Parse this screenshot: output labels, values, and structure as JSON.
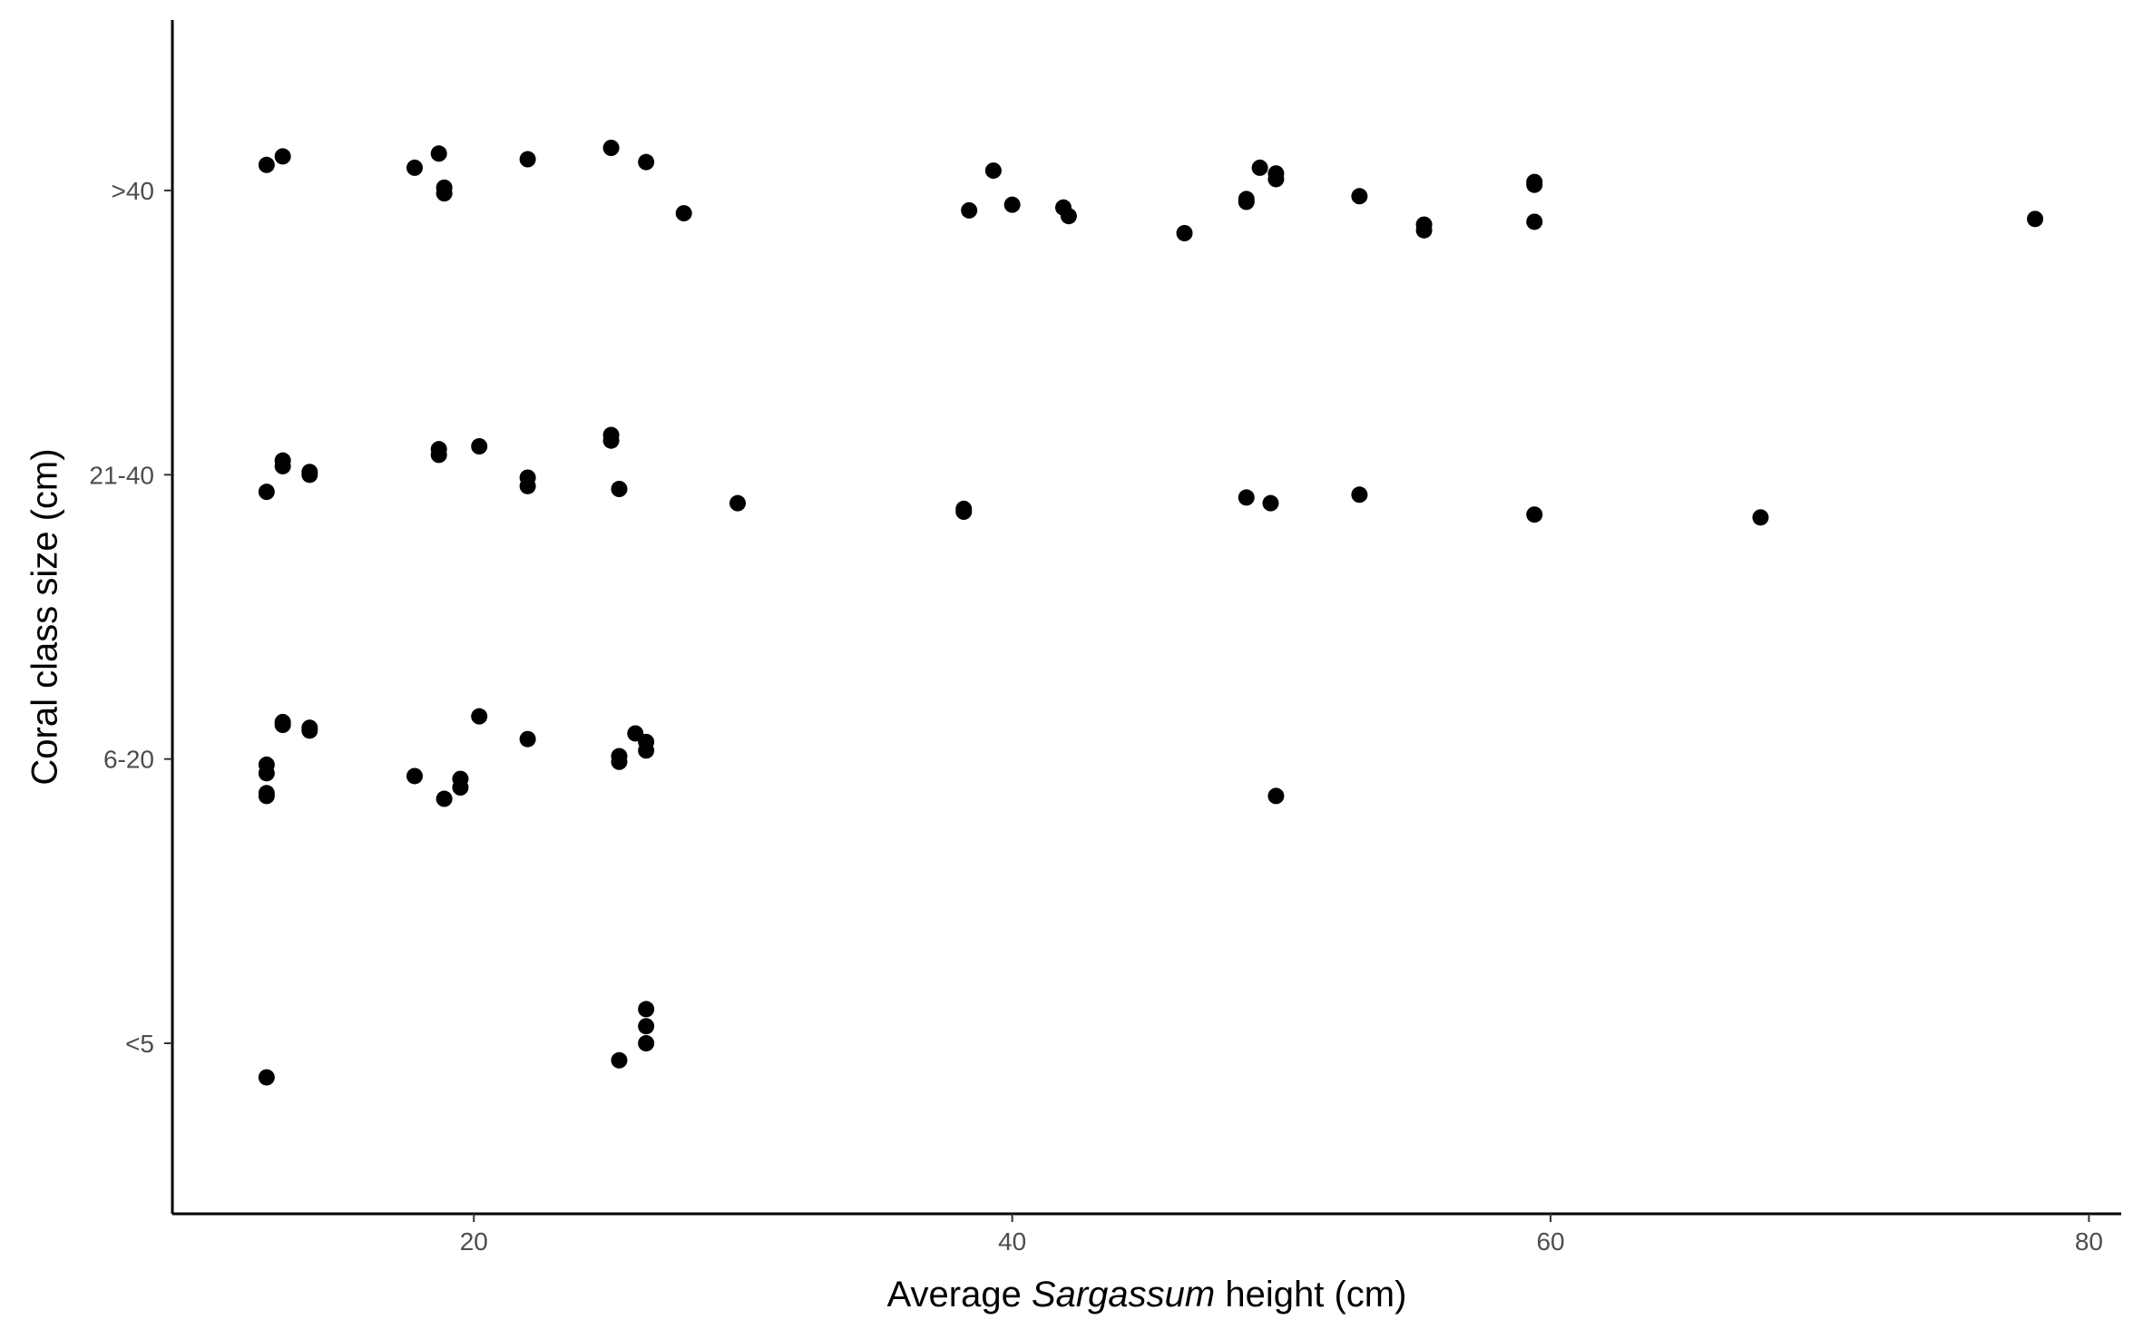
{
  "chart_data": {
    "type": "scatter",
    "xlabel": {
      "prefix": "Average ",
      "italic": "Sargassum",
      "suffix": " height (cm)"
    },
    "ylabel": "Coral class size (cm)",
    "x_ticks": [
      "20",
      "40",
      "60",
      "80"
    ],
    "x_tick_values": [
      20,
      40,
      60,
      80
    ],
    "y_categories": [
      "<5",
      "6-20",
      "21-40",
      ">40"
    ],
    "xlim": [
      8.8,
      81.2
    ],
    "ylim": [
      0.4,
      4.6
    ],
    "grid": false,
    "legend": "none",
    "point_color": "#000000",
    "points": [
      {
        "x": 12.3,
        "y": 4.09
      },
      {
        "x": 12.9,
        "y": 4.12
      },
      {
        "x": 17.8,
        "y": 4.08
      },
      {
        "x": 18.7,
        "y": 4.13
      },
      {
        "x": 18.9,
        "y": 4.01
      },
      {
        "x": 18.9,
        "y": 3.99
      },
      {
        "x": 22.0,
        "y": 4.11
      },
      {
        "x": 25.1,
        "y": 4.15
      },
      {
        "x": 26.4,
        "y": 4.1
      },
      {
        "x": 27.8,
        "y": 3.92
      },
      {
        "x": 38.4,
        "y": 3.93
      },
      {
        "x": 39.3,
        "y": 4.07
      },
      {
        "x": 40.0,
        "y": 3.95
      },
      {
        "x": 41.9,
        "y": 3.94
      },
      {
        "x": 42.1,
        "y": 3.91
      },
      {
        "x": 46.4,
        "y": 3.85
      },
      {
        "x": 48.7,
        "y": 3.96
      },
      {
        "x": 48.7,
        "y": 3.97
      },
      {
        "x": 49.2,
        "y": 4.08
      },
      {
        "x": 49.8,
        "y": 4.06
      },
      {
        "x": 49.8,
        "y": 4.04
      },
      {
        "x": 52.9,
        "y": 3.98
      },
      {
        "x": 55.3,
        "y": 3.88
      },
      {
        "x": 55.3,
        "y": 3.86
      },
      {
        "x": 59.4,
        "y": 4.03
      },
      {
        "x": 59.4,
        "y": 4.02
      },
      {
        "x": 59.4,
        "y": 3.89
      },
      {
        "x": 78.0,
        "y": 3.9
      },
      {
        "x": 12.3,
        "y": 2.94
      },
      {
        "x": 12.9,
        "y": 3.05
      },
      {
        "x": 12.9,
        "y": 3.03
      },
      {
        "x": 13.9,
        "y": 3.01
      },
      {
        "x": 13.9,
        "y": 3.0
      },
      {
        "x": 18.7,
        "y": 3.09
      },
      {
        "x": 18.7,
        "y": 3.07
      },
      {
        "x": 20.2,
        "y": 3.1
      },
      {
        "x": 22.0,
        "y": 2.99
      },
      {
        "x": 22.0,
        "y": 2.96
      },
      {
        "x": 25.1,
        "y": 3.14
      },
      {
        "x": 25.1,
        "y": 3.12
      },
      {
        "x": 25.4,
        "y": 2.95
      },
      {
        "x": 29.8,
        "y": 2.9
      },
      {
        "x": 38.2,
        "y": 2.88
      },
      {
        "x": 38.2,
        "y": 2.87
      },
      {
        "x": 48.7,
        "y": 2.92
      },
      {
        "x": 49.6,
        "y": 2.9
      },
      {
        "x": 52.9,
        "y": 2.93
      },
      {
        "x": 59.4,
        "y": 2.86
      },
      {
        "x": 67.8,
        "y": 2.85
      },
      {
        "x": 12.3,
        "y": 1.98
      },
      {
        "x": 12.3,
        "y": 1.95
      },
      {
        "x": 12.3,
        "y": 1.87
      },
      {
        "x": 12.3,
        "y": 1.88
      },
      {
        "x": 12.9,
        "y": 2.13
      },
      {
        "x": 12.9,
        "y": 2.12
      },
      {
        "x": 13.9,
        "y": 2.11
      },
      {
        "x": 13.9,
        "y": 2.1
      },
      {
        "x": 17.8,
        "y": 1.94
      },
      {
        "x": 18.9,
        "y": 1.86
      },
      {
        "x": 19.5,
        "y": 1.93
      },
      {
        "x": 19.5,
        "y": 1.9
      },
      {
        "x": 20.2,
        "y": 2.15
      },
      {
        "x": 22.0,
        "y": 2.07
      },
      {
        "x": 25.4,
        "y": 2.01
      },
      {
        "x": 25.4,
        "y": 1.99
      },
      {
        "x": 26.0,
        "y": 2.09
      },
      {
        "x": 26.4,
        "y": 2.06
      },
      {
        "x": 26.4,
        "y": 2.03
      },
      {
        "x": 49.8,
        "y": 1.87
      },
      {
        "x": 12.3,
        "y": 0.88
      },
      {
        "x": 25.4,
        "y": 0.94
      },
      {
        "x": 26.4,
        "y": 1.12
      },
      {
        "x": 26.4,
        "y": 1.06
      },
      {
        "x": 26.4,
        "y": 1.0
      }
    ]
  }
}
